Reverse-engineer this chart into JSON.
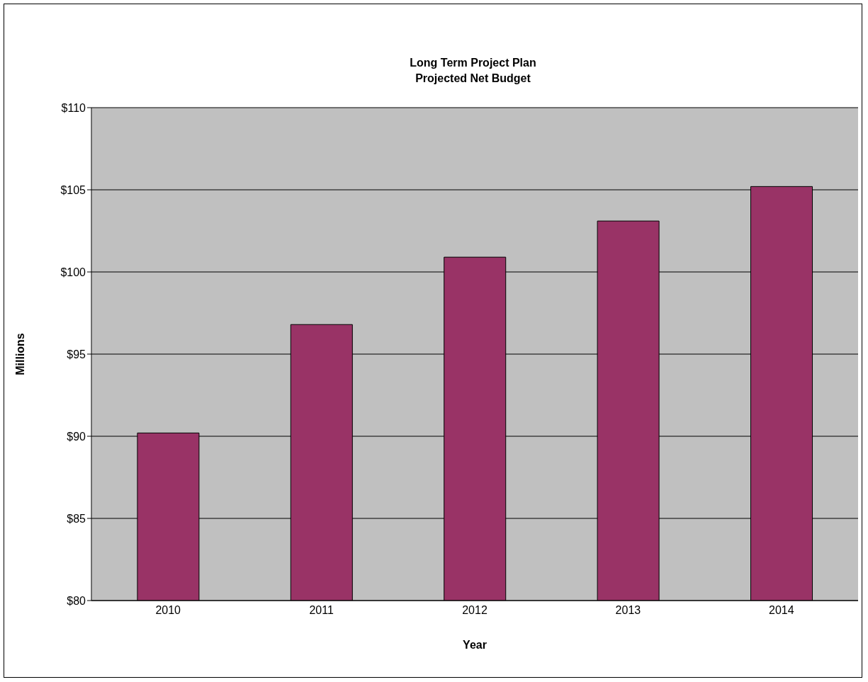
{
  "chart_data": {
    "type": "bar",
    "title": "Long Term Project Plan",
    "subtitle": "Projected Net Budget",
    "xlabel": "Year",
    "ylabel": "Millions",
    "categories": [
      "2010",
      "2011",
      "2012",
      "2013",
      "2014"
    ],
    "values": [
      90.2,
      96.8,
      100.9,
      103.1,
      105.2
    ],
    "color": "#993366",
    "ylim": [
      80,
      110
    ],
    "yticks": [
      {
        "value": 80,
        "label": "$80"
      },
      {
        "value": 85,
        "label": "$85"
      },
      {
        "value": 90,
        "label": "$90"
      },
      {
        "value": 95,
        "label": "$95"
      },
      {
        "value": 100,
        "label": "$100"
      },
      {
        "value": 105,
        "label": "$105"
      },
      {
        "value": 110,
        "label": "$110"
      }
    ],
    "grid": "y",
    "legend": false
  }
}
